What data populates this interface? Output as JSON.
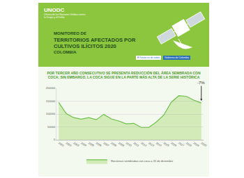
{
  "header": {
    "organization": "UNODC",
    "organization_subtitle": "Oficina de las Naciones Unidas contra la Droga y el Delito",
    "title_lines": [
      "MONITOREO DE",
      "TERRITORIOS AFECTADOS POR",
      "CULTIVOS ILÍCITOS 2020",
      "COLOMBIA"
    ],
    "partners": [
      "El futuro es de todos",
      "Gobierno de Colombia"
    ]
  },
  "chart_data": {
    "type": "area",
    "title": "POR TERCER AÑO CONSECUTIVO SE PRESENTA REDUCCIÓN DEL ÁREA SEMBRADA CON COCA; SIN EMBARGO, LA COCA SIGUE EN LA PARTE MÁS ALTA DE LA SERIE HISTÓRICA",
    "categories": [
      "2001",
      "2002",
      "2003",
      "2004",
      "2005",
      "2006",
      "2007",
      "2008",
      "2009",
      "2010",
      "2011",
      "2012",
      "2013",
      "2014",
      "2015",
      "2016",
      "2017",
      "2018",
      "2019",
      "2020"
    ],
    "series": [
      {
        "name": "Hectáreas sembradas con coca a 31 de diciembre",
        "color": "#6cc04a",
        "values": [
          144800,
          102000,
          86000,
          80000,
          86000,
          78000,
          99000,
          81000,
          73000,
          62000,
          64000,
          48000,
          48000,
          69000,
          96000,
          146000,
          171000,
          169000,
          154000,
          143000
        ]
      }
    ],
    "ylim": [
      0,
      200000
    ],
    "yticks": [
      0,
      50000,
      100000,
      150000,
      200000
    ],
    "grid": true,
    "legend": "bottom",
    "annotations": [
      {
        "text": "-7%",
        "category": "2020"
      }
    ]
  }
}
